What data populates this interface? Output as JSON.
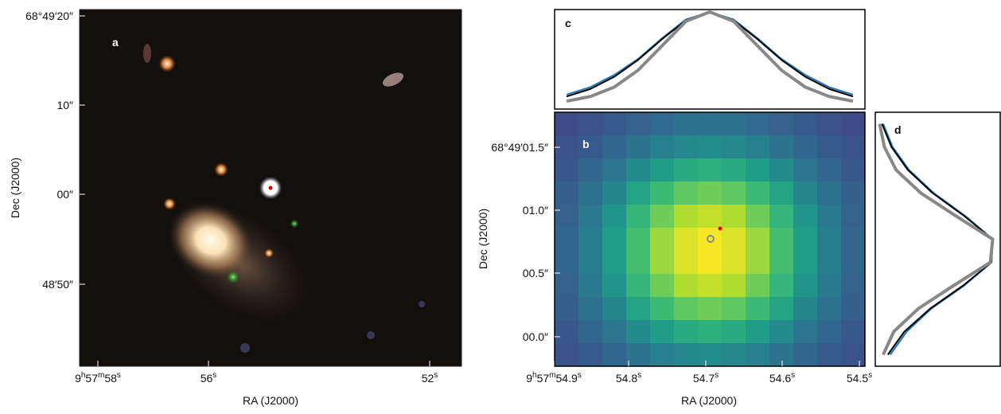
{
  "panels": {
    "a": {
      "label": "a",
      "x_title": "RA (J2000)",
      "y_title": "Dec (J2000)",
      "x_ticks": [
        [
          "9",
          "h",
          "57",
          "m",
          "58",
          "s"
        ],
        [
          "56",
          "s"
        ],
        [
          "52",
          "s"
        ]
      ],
      "y_ticks": [
        "68°49′20″",
        "10″",
        "00″",
        "48′50″"
      ]
    },
    "b": {
      "label": "b",
      "x_title": "RA (J2000)",
      "y_title": "Dec (J2000)",
      "x_ticks": [
        [
          "9",
          "h",
          "57",
          "m",
          "54.9",
          "s"
        ],
        [
          "54.8",
          "s"
        ],
        [
          "54.7",
          "s"
        ],
        [
          "54.6",
          "s"
        ],
        [
          "54.5",
          "s"
        ]
      ],
      "y_ticks": [
        "68°49′01.5″",
        "01.0″",
        "00.5″",
        "00.0″"
      ],
      "pixels": [
        [
          0.23,
          0.25,
          0.28,
          0.31,
          0.34,
          0.37,
          0.38,
          0.37,
          0.34,
          0.31,
          0.28,
          0.25,
          0.23
        ],
        [
          0.25,
          0.28,
          0.33,
          0.38,
          0.44,
          0.47,
          0.49,
          0.47,
          0.44,
          0.38,
          0.33,
          0.28,
          0.25
        ],
        [
          0.27,
          0.33,
          0.39,
          0.48,
          0.55,
          0.61,
          0.63,
          0.61,
          0.55,
          0.48,
          0.39,
          0.33,
          0.27
        ],
        [
          0.3,
          0.37,
          0.46,
          0.58,
          0.68,
          0.75,
          0.78,
          0.75,
          0.68,
          0.58,
          0.46,
          0.37,
          0.3
        ],
        [
          0.31,
          0.41,
          0.52,
          0.66,
          0.78,
          0.88,
          0.91,
          0.88,
          0.78,
          0.66,
          0.52,
          0.41,
          0.31
        ],
        [
          0.33,
          0.43,
          0.56,
          0.7,
          0.85,
          0.95,
          0.99,
          0.95,
          0.85,
          0.7,
          0.56,
          0.43,
          0.33
        ],
        [
          0.33,
          0.43,
          0.56,
          0.7,
          0.85,
          0.95,
          0.99,
          0.95,
          0.85,
          0.7,
          0.56,
          0.43,
          0.33
        ],
        [
          0.31,
          0.41,
          0.52,
          0.66,
          0.78,
          0.88,
          0.91,
          0.88,
          0.78,
          0.66,
          0.52,
          0.41,
          0.31
        ],
        [
          0.3,
          0.37,
          0.46,
          0.58,
          0.68,
          0.75,
          0.78,
          0.75,
          0.68,
          0.58,
          0.46,
          0.37,
          0.3
        ],
        [
          0.27,
          0.33,
          0.39,
          0.48,
          0.55,
          0.61,
          0.63,
          0.61,
          0.55,
          0.48,
          0.39,
          0.33,
          0.27
        ],
        [
          0.25,
          0.28,
          0.33,
          0.38,
          0.44,
          0.47,
          0.49,
          0.47,
          0.44,
          0.38,
          0.33,
          0.28,
          0.25
        ]
      ]
    },
    "c": {
      "label": "c",
      "series": [
        {
          "color": "#1f77b4",
          "width": 2,
          "values": [
            0.12,
            0.2,
            0.33,
            0.5,
            0.72,
            0.92,
            1.0,
            0.92,
            0.72,
            0.5,
            0.33,
            0.2,
            0.12
          ]
        },
        {
          "color": "#000000",
          "width": 2,
          "values": [
            0.1,
            0.18,
            0.31,
            0.49,
            0.71,
            0.91,
            1.0,
            0.91,
            0.71,
            0.49,
            0.31,
            0.18,
            0.1
          ]
        },
        {
          "color": "#888888",
          "width": 4,
          "values": [
            0.05,
            0.1,
            0.2,
            0.38,
            0.64,
            0.9,
            1.0,
            0.9,
            0.64,
            0.38,
            0.2,
            0.1,
            0.05
          ]
        }
      ]
    },
    "d": {
      "label": "d",
      "series": [
        {
          "color": "#1f77b4",
          "width": 2,
          "values": [
            0.04,
            0.12,
            0.26,
            0.47,
            0.74,
            0.97,
            0.96,
            0.73,
            0.45,
            0.24,
            0.1
          ]
        },
        {
          "color": "#000000",
          "width": 2,
          "values": [
            0.03,
            0.11,
            0.25,
            0.46,
            0.73,
            0.97,
            0.96,
            0.72,
            0.44,
            0.22,
            0.08
          ]
        },
        {
          "color": "#888888",
          "width": 4,
          "values": [
            0.01,
            0.05,
            0.15,
            0.36,
            0.66,
            0.97,
            0.95,
            0.64,
            0.34,
            0.13,
            0.04
          ]
        }
      ]
    }
  }
}
